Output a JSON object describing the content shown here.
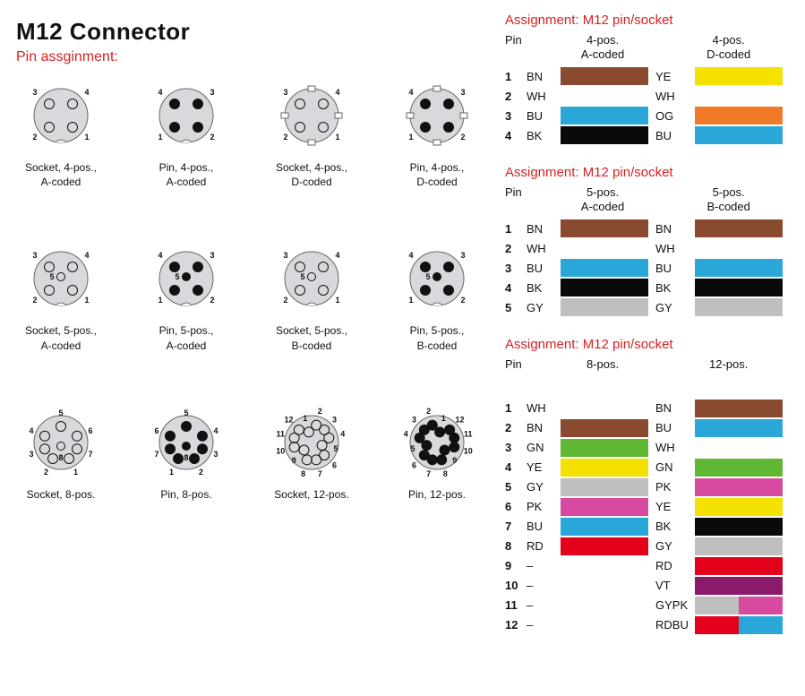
{
  "title": "M12 Connector",
  "subtitle": "Pin assginment:",
  "connector_fill": "#d7d9dc",
  "connector_stroke": "#666",
  "pin_num_fontsize": 9,
  "connectors": [
    [
      {
        "label": "Socket, 4-pos.,\nA-coded",
        "pins": 4,
        "type": "socket",
        "coding": "A"
      },
      {
        "label": "Pin, 4-pos.,\nA-coded",
        "pins": 4,
        "type": "pin",
        "coding": "A"
      },
      {
        "label": "Socket, 4-pos.,\nD-coded",
        "pins": 4,
        "type": "socket",
        "coding": "D"
      },
      {
        "label": "Pin, 4-pos.,\nD-coded",
        "pins": 4,
        "type": "pin",
        "coding": "D"
      }
    ],
    [
      {
        "label": "Socket, 5-pos.,\nA-coded",
        "pins": 5,
        "type": "socket",
        "coding": "A"
      },
      {
        "label": "Pin, 5-pos.,\nA-coded",
        "pins": 5,
        "type": "pin",
        "coding": "A"
      },
      {
        "label": "Socket, 5-pos.,\nB-coded",
        "pins": 5,
        "type": "socket",
        "coding": "B"
      },
      {
        "label": "Pin, 5-pos.,\nB-coded",
        "pins": 5,
        "type": "pin",
        "coding": "B"
      }
    ],
    [
      {
        "label": "Socket, 8-pos.",
        "pins": 8,
        "type": "socket"
      },
      {
        "label": "Pin, 8-pos.",
        "pins": 8,
        "type": "pin"
      },
      {
        "label": "Socket, 12-pos.",
        "pins": 12,
        "type": "socket"
      },
      {
        "label": "Pin, 12-pos.",
        "pins": 12,
        "type": "pin"
      }
    ]
  ],
  "colors": {
    "BN": "#8a4a30",
    "WH": "#ffffff",
    "BU": "#2aa6d9",
    "BK": "#0a0a0a",
    "YE": "#f5e100",
    "OG": "#f07a26",
    "GY": "#bfbfbf",
    "GN": "#5fb733",
    "PK": "#d84aa0",
    "RD": "#e2001a",
    "VT": "#8a1a6a",
    "GYPK_L": "#bfbfbf",
    "GYPK_R": "#d84aa0",
    "RDBU_L": "#e2001a",
    "RDBU_R": "#2aa6d9"
  },
  "assignments": [
    {
      "title": "Assignment: M12 pin/socket",
      "header_pin": "Pin",
      "groups": [
        "4-pos.\nA-coded",
        "4-pos.\nD-coded"
      ],
      "rows": [
        {
          "pin": "1",
          "a_code": "BN",
          "a_color": "BN",
          "b_code": "YE",
          "b_color": "YE"
        },
        {
          "pin": "2",
          "a_code": "WH",
          "a_color": "WH",
          "b_code": "WH",
          "b_color": "WH"
        },
        {
          "pin": "3",
          "a_code": "BU",
          "a_color": "BU",
          "b_code": "OG",
          "b_color": "OG"
        },
        {
          "pin": "4",
          "a_code": "BK",
          "a_color": "BK",
          "b_code": "BU",
          "b_color": "BU"
        }
      ]
    },
    {
      "title": "Assignment: M12 pin/socket",
      "header_pin": "Pin",
      "groups": [
        "5-pos.\nA-coded",
        "5-pos.\nB-coded"
      ],
      "rows": [
        {
          "pin": "1",
          "a_code": "BN",
          "a_color": "BN",
          "b_code": "BN",
          "b_color": "BN"
        },
        {
          "pin": "2",
          "a_code": "WH",
          "a_color": "WH",
          "b_code": "WH",
          "b_color": "WH"
        },
        {
          "pin": "3",
          "a_code": "BU",
          "a_color": "BU",
          "b_code": "BU",
          "b_color": "BU"
        },
        {
          "pin": "4",
          "a_code": "BK",
          "a_color": "BK",
          "b_code": "BK",
          "b_color": "BK"
        },
        {
          "pin": "5",
          "a_code": "GY",
          "a_color": "GY",
          "b_code": "GY",
          "b_color": "GY"
        }
      ]
    },
    {
      "title": "Assignment: M12 pin/socket",
      "header_pin": "Pin",
      "groups": [
        "8-pos.",
        "12-pos."
      ],
      "gap_after_header": true,
      "rows": [
        {
          "pin": "1",
          "a_code": "WH",
          "a_color": "WH",
          "b_code": "BN",
          "b_color": "BN"
        },
        {
          "pin": "2",
          "a_code": "BN",
          "a_color": "BN",
          "b_code": "BU",
          "b_color": "BU"
        },
        {
          "pin": "3",
          "a_code": "GN",
          "a_color": "GN",
          "b_code": "WH",
          "b_color": "WH"
        },
        {
          "pin": "4",
          "a_code": "YE",
          "a_color": "YE",
          "b_code": "GN",
          "b_color": "GN"
        },
        {
          "pin": "5",
          "a_code": "GY",
          "a_color": "GY",
          "b_code": "PK",
          "b_color": "PK"
        },
        {
          "pin": "6",
          "a_code": "PK",
          "a_color": "PK",
          "b_code": "YE",
          "b_color": "YE"
        },
        {
          "pin": "7",
          "a_code": "BU",
          "a_color": "BU",
          "b_code": "BK",
          "b_color": "BK"
        },
        {
          "pin": "8",
          "a_code": "RD",
          "a_color": "RD",
          "b_code": "GY",
          "b_color": "GY"
        },
        {
          "pin": "9",
          "a_code": "–",
          "a_color": null,
          "b_code": "RD",
          "b_color": "RD"
        },
        {
          "pin": "10",
          "a_code": "–",
          "a_color": null,
          "b_code": "VT",
          "b_color": "VT"
        },
        {
          "pin": "11",
          "a_code": "–",
          "a_color": null,
          "b_code": "GYPK",
          "b_split": [
            "GYPK_L",
            "GYPK_R"
          ]
        },
        {
          "pin": "12",
          "a_code": "–",
          "a_color": null,
          "b_code": "RDBU",
          "b_split": [
            "RDBU_L",
            "RDBU_R"
          ]
        }
      ]
    }
  ]
}
